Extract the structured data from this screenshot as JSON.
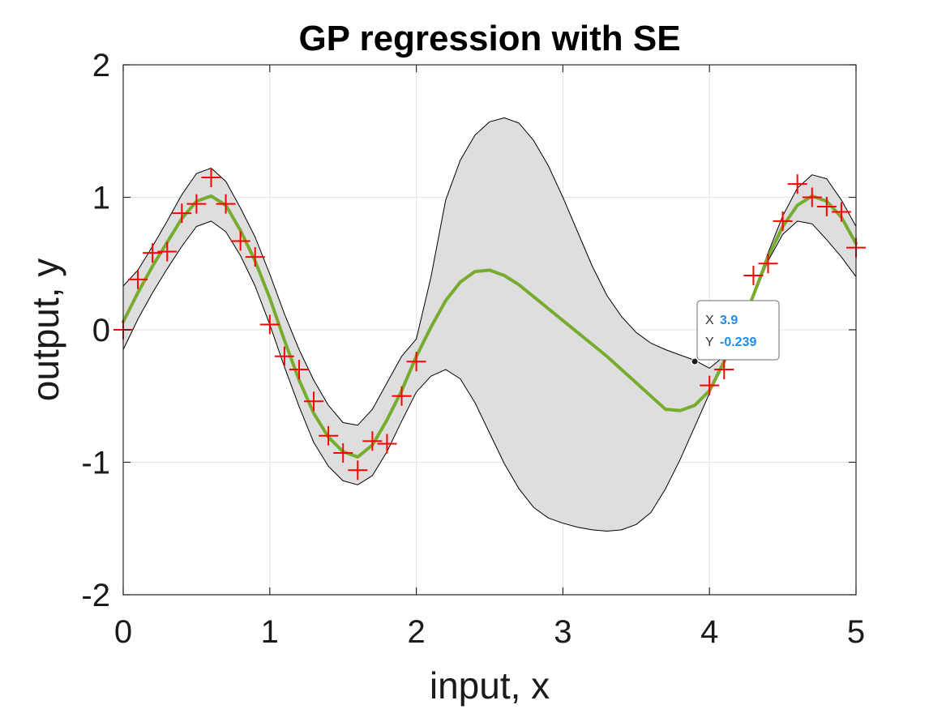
{
  "chart_data": {
    "type": "line",
    "title": "GP regression with SE",
    "xlabel": "input, x",
    "ylabel": "output, y",
    "xlim": [
      0,
      5
    ],
    "ylim": [
      -2,
      2
    ],
    "xticks": [
      0,
      1,
      2,
      3,
      4,
      5
    ],
    "xtick_labels": [
      "0",
      "1",
      "2",
      "3",
      "4",
      "5"
    ],
    "yticks": [
      -2,
      -1,
      0,
      1,
      2
    ],
    "ytick_labels": [
      "-2",
      "-1",
      "0",
      "1",
      "2"
    ],
    "grid": true,
    "colors": {
      "mean": "#77ac30",
      "band_fill": "#dedede",
      "band_edge": "#000000",
      "observations": "#ff0000",
      "tooltip_value": "#1f8ceb"
    },
    "series": [
      {
        "kind": "band",
        "x": [
          0,
          0.1,
          0.2,
          0.3,
          0.4,
          0.5,
          0.6,
          0.7,
          0.8,
          0.9,
          1.0,
          1.1,
          1.2,
          1.3,
          1.4,
          1.5,
          1.6,
          1.7,
          1.8,
          1.9,
          2.0,
          2.1,
          2.2,
          2.3,
          2.4,
          2.5,
          2.6,
          2.7,
          2.8,
          2.9,
          3.0,
          3.1,
          3.2,
          3.3,
          3.4,
          3.5,
          3.6,
          3.7,
          3.8,
          3.9,
          4.0,
          4.1,
          4.2,
          4.3,
          4.4,
          4.5,
          4.6,
          4.7,
          4.8,
          4.9,
          5.0
        ],
        "upper": [
          0.33,
          0.45,
          0.63,
          0.82,
          1.02,
          1.18,
          1.22,
          1.12,
          0.92,
          0.7,
          0.42,
          0.12,
          -0.15,
          -0.38,
          -0.57,
          -0.7,
          -0.72,
          -0.6,
          -0.4,
          -0.2,
          -0.07,
          0.4,
          0.98,
          1.28,
          1.47,
          1.57,
          1.6,
          1.56,
          1.43,
          1.24,
          1.0,
          0.74,
          0.48,
          0.26,
          0.1,
          -0.02,
          -0.1,
          -0.15,
          -0.19,
          -0.23,
          -0.29,
          -0.2,
          0.0,
          0.28,
          0.58,
          0.86,
          1.07,
          1.17,
          1.14,
          0.98,
          0.78
        ],
        "lower": [
          -0.15,
          0.08,
          0.28,
          0.46,
          0.63,
          0.78,
          0.82,
          0.74,
          0.56,
          0.33,
          0.04,
          -0.28,
          -0.58,
          -0.85,
          -1.03,
          -1.14,
          -1.17,
          -1.1,
          -0.92,
          -0.69,
          -0.47,
          -0.35,
          -0.3,
          -0.37,
          -0.55,
          -0.78,
          -1.01,
          -1.2,
          -1.34,
          -1.42,
          -1.46,
          -1.49,
          -1.51,
          -1.52,
          -1.51,
          -1.47,
          -1.38,
          -1.2,
          -0.98,
          -0.73,
          -0.48,
          -0.26,
          -0.02,
          0.24,
          0.52,
          0.72,
          0.82,
          0.8,
          0.68,
          0.55,
          0.4
        ]
      },
      {
        "kind": "line",
        "x": [
          0,
          0.1,
          0.2,
          0.3,
          0.4,
          0.5,
          0.6,
          0.7,
          0.8,
          0.9,
          1.0,
          1.1,
          1.2,
          1.3,
          1.4,
          1.5,
          1.6,
          1.7,
          1.8,
          1.9,
          2.0,
          2.1,
          2.2,
          2.3,
          2.4,
          2.5,
          2.6,
          2.7,
          2.8,
          2.9,
          3.0,
          3.1,
          3.2,
          3.3,
          3.4,
          3.5,
          3.6,
          3.7,
          3.8,
          3.9,
          4.0,
          4.1,
          4.2,
          4.3,
          4.4,
          4.5,
          4.6,
          4.7,
          4.8,
          4.9,
          5.0
        ],
        "y": [
          0.06,
          0.28,
          0.48,
          0.66,
          0.84,
          0.97,
          1.01,
          0.94,
          0.75,
          0.52,
          0.24,
          -0.08,
          -0.38,
          -0.63,
          -0.81,
          -0.92,
          -0.96,
          -0.87,
          -0.68,
          -0.46,
          -0.2,
          0.02,
          0.22,
          0.36,
          0.44,
          0.45,
          0.41,
          0.34,
          0.25,
          0.16,
          0.07,
          -0.02,
          -0.11,
          -0.2,
          -0.3,
          -0.4,
          -0.5,
          -0.6,
          -0.61,
          -0.57,
          -0.46,
          -0.24,
          -0.01,
          0.26,
          0.55,
          0.78,
          0.94,
          1.01,
          0.97,
          0.85,
          0.65
        ]
      },
      {
        "kind": "scatter",
        "marker": "+",
        "x": [
          0.0,
          0.1,
          0.2,
          0.3,
          0.4,
          0.5,
          0.6,
          0.7,
          0.8,
          0.9,
          1.0,
          1.1,
          1.2,
          1.3,
          1.4,
          1.5,
          1.6,
          1.7,
          1.8,
          1.9,
          2.0,
          4.0,
          4.1,
          4.3,
          4.4,
          4.5,
          4.6,
          4.7,
          4.8,
          4.9,
          5.0
        ],
        "y": [
          0.0,
          0.38,
          0.58,
          0.59,
          0.88,
          0.95,
          1.15,
          0.95,
          0.67,
          0.55,
          0.04,
          -0.2,
          -0.3,
          -0.54,
          -0.8,
          -0.93,
          -1.06,
          -0.84,
          -0.86,
          -0.5,
          -0.24,
          -0.42,
          -0.3,
          0.41,
          0.5,
          0.82,
          1.1,
          1.0,
          0.93,
          0.89,
          0.62
        ]
      }
    ],
    "datatip": {
      "x": 3.9,
      "y": -0.239,
      "x_key": "X",
      "y_key": "Y",
      "x_text": "3.9",
      "y_text": "-0.239"
    }
  }
}
